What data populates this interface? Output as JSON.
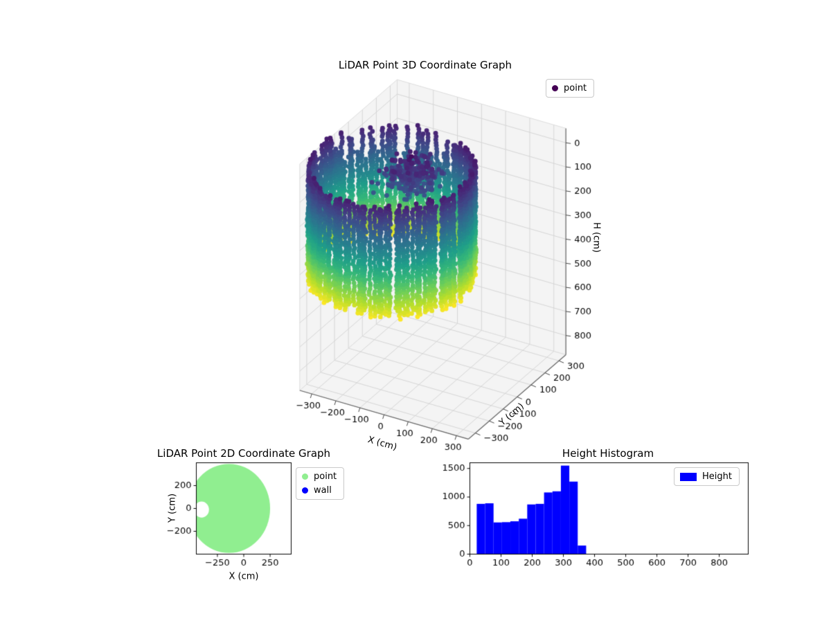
{
  "figure": {
    "background": "#ffffff"
  },
  "colors": {
    "pane": "#f4f4f4",
    "grid": "#d6d6d6",
    "pane_edge": "#dcdcdc",
    "axis_line": "#666666",
    "hist_bar": "#0000ff",
    "point_2d": "#90ee90",
    "wall_2d": "#0000ff",
    "point_3d_legend": "#440154"
  },
  "chart_data": [
    {
      "type": "scatter3d",
      "title": "LiDAR Point 3D Coordinate Graph",
      "xlabel": "X (cm)",
      "ylabel": "Y (cm)",
      "zlabel": "H (cm)",
      "legend": [
        {
          "label": "point",
          "color": "#440154"
        }
      ],
      "xlim": [
        -350,
        350
      ],
      "ylim": [
        -350,
        350
      ],
      "hlim": [
        -60,
        880
      ],
      "h_axis_inverted": true,
      "view": {
        "elev": 30,
        "azim": -60
      },
      "x_tick_vals": [
        -300,
        -200,
        -100,
        0,
        100,
        200,
        300
      ],
      "x_tick_labels": [
        "−300",
        "−200",
        "−100",
        "0",
        "100",
        "200",
        "300"
      ],
      "y_tick_vals": [
        -300,
        -200,
        -100,
        0,
        100,
        200,
        300
      ],
      "y_tick_labels": [
        "−300",
        "−200",
        "−100",
        "0",
        "100",
        "200",
        "300"
      ],
      "h_tick_vals": [
        0,
        100,
        200,
        300,
        400,
        500,
        600,
        700,
        800
      ],
      "h_tick_labels": [
        "0",
        "100",
        "200",
        "300",
        "400",
        "500",
        "600",
        "700",
        "800"
      ],
      "point_cloud": {
        "shape": "hollow cylindrical ring of wall columns",
        "ring_center_xy": [
          -150,
          -40
        ],
        "ring_radius_cm": 297,
        "column_angle_step_deg": 3,
        "column_point_spacing_cm": 13,
        "ring_height_top_cm": 35,
        "ring_height_bottom_cm": 495,
        "ragged_top_extra_cm": 150,
        "interior_cluster": {
          "center_xy": [
            -100,
            20
          ],
          "height_range_cm": [
            45,
            145
          ],
          "count": 240
        },
        "interior_streak": {
          "xy": [
            -100,
            10
          ],
          "height_range_cm": [
            18,
            200
          ],
          "count": 14
        },
        "colormap": "viridis",
        "color_encodes": "height",
        "color_height_max_cm": 510
      }
    },
    {
      "type": "scatter2d",
      "title": "LiDAR Point 2D Coordinate Graph",
      "xlabel": "X (cm)",
      "ylabel": "Y (cm)",
      "xlim": [
        -450,
        450
      ],
      "ylim": [
        -400,
        400
      ],
      "x_tick_vals": [
        -250,
        0,
        250
      ],
      "x_tick_labels": [
        "−250",
        "0",
        "250"
      ],
      "y_tick_vals": [
        200,
        0,
        -200
      ],
      "y_tick_labels": [
        "200",
        "0",
        "−200"
      ],
      "legend": [
        {
          "label": "point",
          "color": "#90ee90"
        },
        {
          "label": "wall",
          "color": "#0000ff"
        }
      ],
      "disk": {
        "center": [
          -140,
          0
        ],
        "radius_cm": 390,
        "color": "#90ee90"
      },
      "notch": {
        "center": [
          -400,
          -10
        ],
        "radius_cm": 70,
        "color": "#ffffff"
      }
    },
    {
      "type": "histogram",
      "title": "Height Histogram",
      "legend": [
        {
          "label": "Height",
          "color": "#0000ff"
        }
      ],
      "xlim": [
        0,
        893
      ],
      "ylim": [
        0,
        1600
      ],
      "x_tick_vals": [
        0,
        100,
        200,
        300,
        400,
        500,
        600,
        700,
        800
      ],
      "x_tick_labels": [
        "0",
        "100",
        "200",
        "300",
        "400",
        "500",
        "600",
        "700",
        "800"
      ],
      "y_tick_vals": [
        0,
        500,
        1000,
        1500
      ],
      "y_tick_labels": [
        "0",
        "500",
        "1000",
        "1500"
      ],
      "bin_edges": [
        22,
        49,
        76,
        103,
        130,
        157,
        184,
        211,
        238,
        265,
        292,
        319,
        346,
        373
      ],
      "counts": [
        880,
        890,
        555,
        560,
        575,
        620,
        870,
        880,
        1080,
        1100,
        1550,
        1270,
        150
      ]
    }
  ]
}
